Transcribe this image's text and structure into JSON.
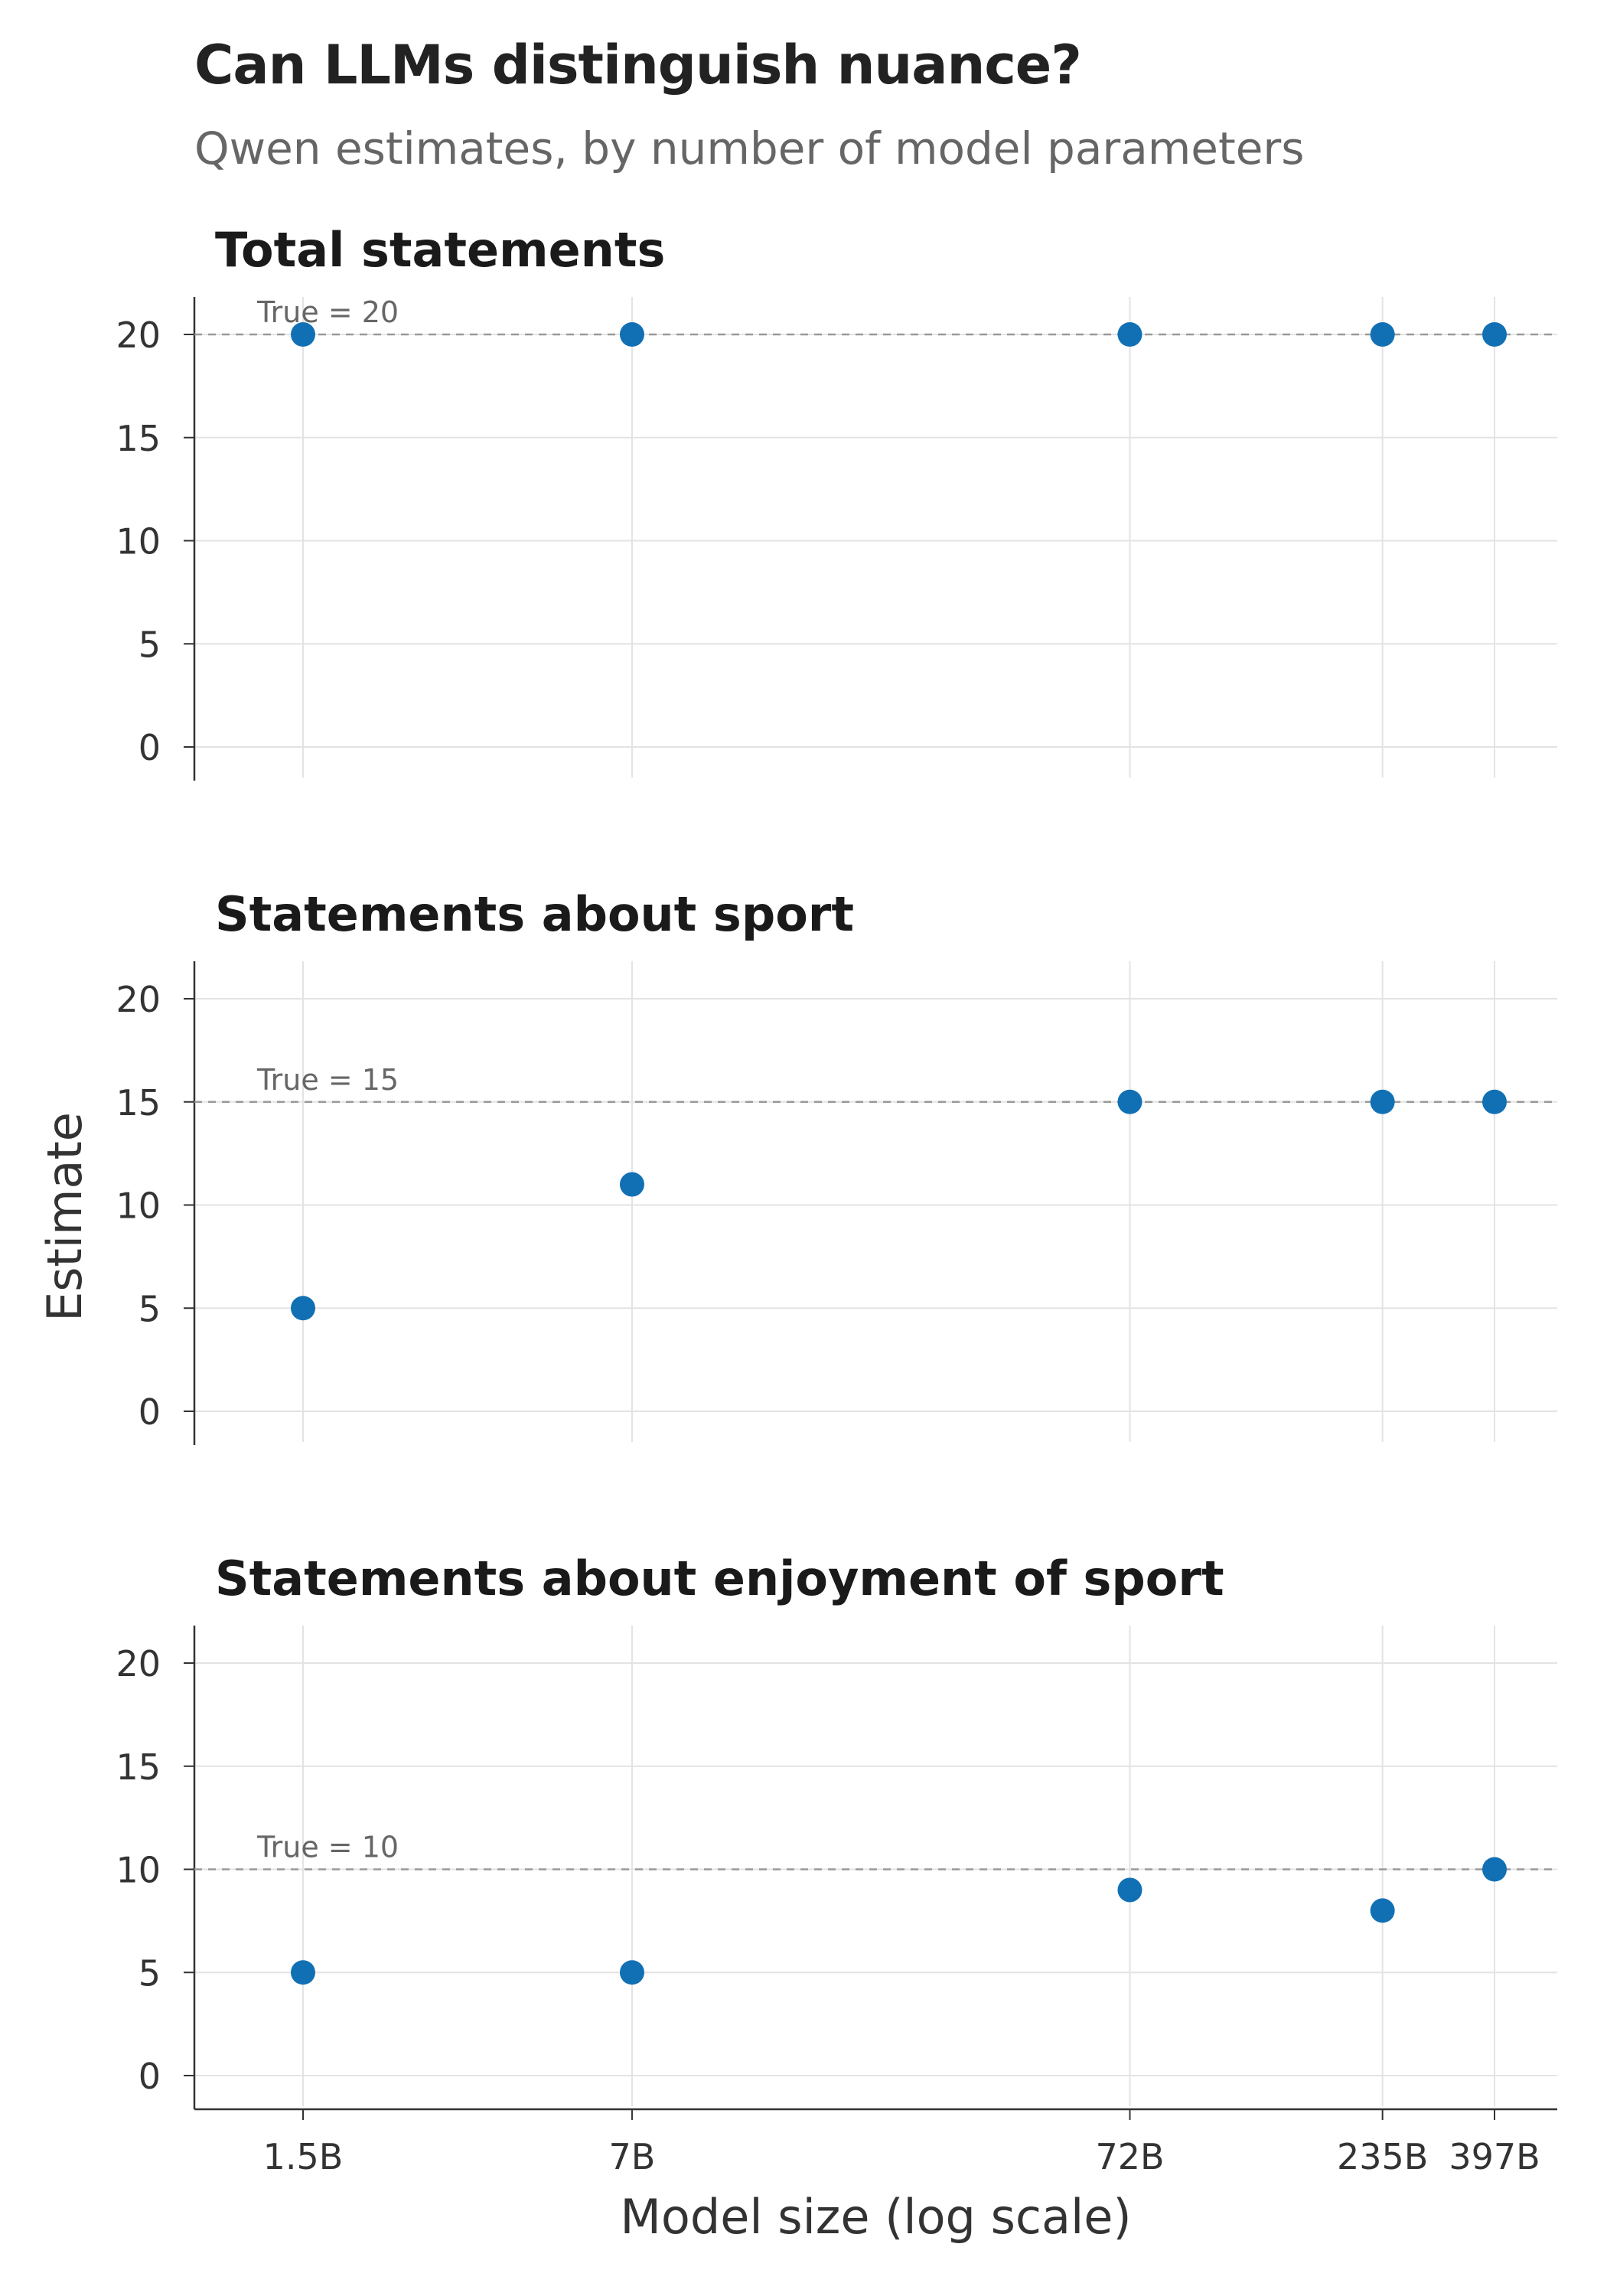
{
  "header": {
    "title": "Can LLMs distinguish nuance?",
    "subtitle": "Qwen estimates, by number of model parameters"
  },
  "colors": {
    "point": "#1170b4",
    "reference_line": "#999999",
    "grid": "#e3e3e3",
    "axis": "#333333",
    "text": "#333333"
  },
  "chart_data": {
    "type": "scatter",
    "xlabel": "Model size (log scale)",
    "ylabel": "Estimate",
    "x_scale": "log",
    "x_params_billions": [
      1.5,
      7,
      72,
      235,
      397
    ],
    "x_tick_labels": [
      "1.5B",
      "7B",
      "72B",
      "235B",
      "397B"
    ],
    "yticks": [
      0,
      5,
      10,
      15,
      20
    ],
    "ylim": [
      0,
      22
    ],
    "grid": true,
    "panels": [
      {
        "title": "Total statements",
        "true_value": 20,
        "true_label": "True = 20",
        "values": [
          20,
          20,
          20,
          20,
          20
        ]
      },
      {
        "title": "Statements about sport",
        "true_value": 15,
        "true_label": "True = 15",
        "values": [
          5,
          11,
          15,
          15,
          15
        ]
      },
      {
        "title": "Statements about enjoyment of sport",
        "true_value": 10,
        "true_label": "True = 10",
        "values": [
          5,
          5,
          9,
          8,
          10
        ]
      }
    ]
  }
}
